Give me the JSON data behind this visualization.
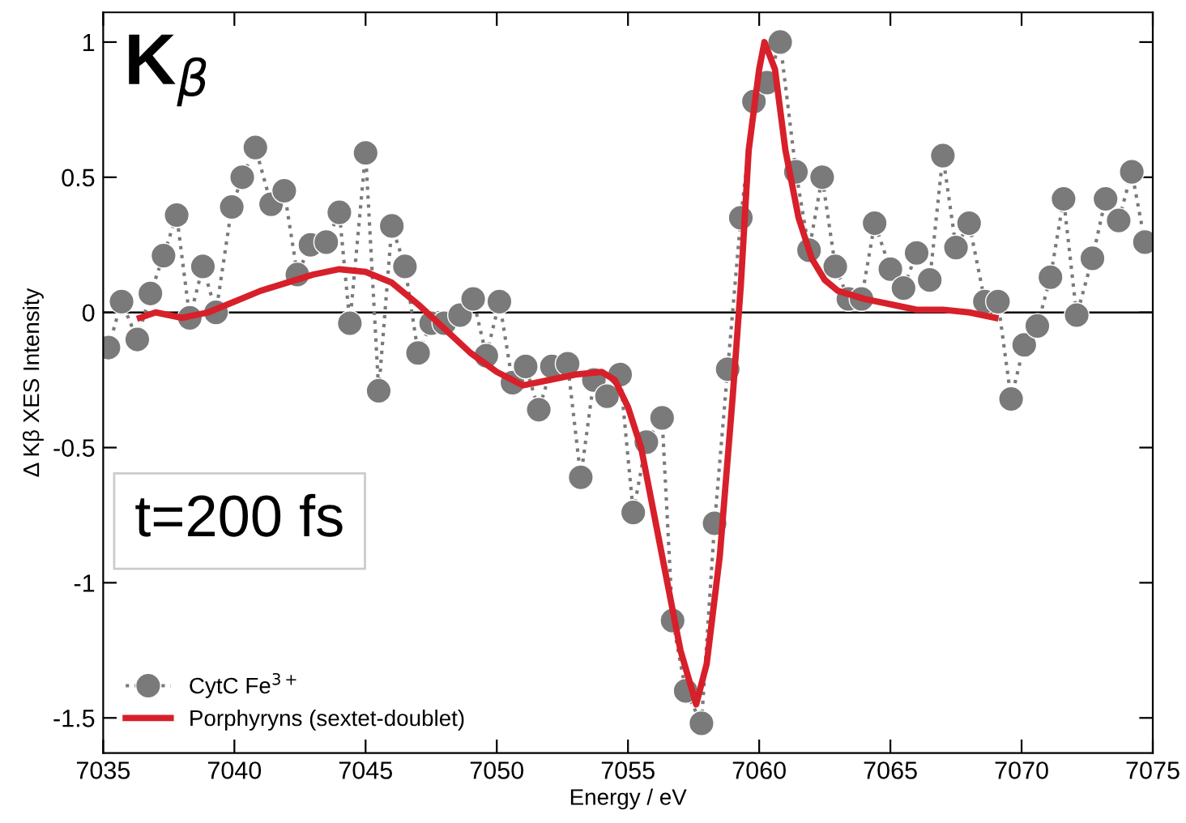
{
  "chart_data": {
    "type": "line",
    "xlabel": "Energy / eV",
    "ylabel": "Δ Kβ XES Intensity",
    "xlim": [
      7035,
      7075
    ],
    "xticks": [
      7035,
      7040,
      7045,
      7050,
      7055,
      7060,
      7065,
      7070,
      7075
    ],
    "ylim": [
      -1.63,
      1.11
    ],
    "yticks": [
      {
        "value": -1.5,
        "label": "-1.5"
      },
      {
        "value": -1,
        "label": "-1"
      },
      {
        "value": -0.5,
        "label": "-0.5"
      },
      0,
      0.5,
      1
    ],
    "grid": false,
    "legend": "bottom left",
    "annotations": [
      "K$_{β}$",
      "t=200 fs"
    ],
    "ref_lines": [
      {
        "axis": "y",
        "value": 0,
        "color": "#000000"
      }
    ],
    "series": [
      {
        "name": "CytC Fe$^{3+}$",
        "color": "#7a7a7a",
        "marker": "circle",
        "line_style": "dotted",
        "x": [
          7035.2,
          7035.7,
          7036.3,
          7036.8,
          7037.3,
          7037.8,
          7038.3,
          7038.8,
          7039.3,
          7039.9,
          7040.3,
          7040.8,
          7041.4,
          7041.9,
          7042.4,
          7042.9,
          7043.5,
          7044.0,
          7044.4,
          7045.0,
          7045.5,
          7046.0,
          7046.5,
          7047.0,
          7047.5,
          7048.0,
          7048.6,
          7049.1,
          7049.6,
          7050.1,
          7050.6,
          7051.1,
          7051.6,
          7052.1,
          7052.7,
          7053.2,
          7053.7,
          7054.2,
          7054.7,
          7055.2,
          7055.7,
          7056.3,
          7056.7,
          7057.2,
          7057.8,
          7058.3,
          7058.8,
          7059.3,
          7059.8,
          7060.3,
          7060.8,
          7061.4,
          7061.9,
          7062.4,
          7062.9,
          7063.4,
          7063.9,
          7064.4,
          7065.0,
          7065.5,
          7066.0,
          7066.5,
          7067.0,
          7067.5,
          7068.0,
          7068.6,
          7069.1,
          7069.6,
          7070.1,
          7070.6,
          7071.1,
          7071.6,
          7072.1,
          7072.7,
          7073.2,
          7073.7,
          7074.2,
          7074.7
        ],
        "values": [
          -0.13,
          0.04,
          -0.1,
          0.07,
          0.21,
          0.36,
          -0.02,
          0.17,
          0.0,
          0.39,
          0.5,
          0.61,
          0.4,
          0.45,
          0.14,
          0.25,
          0.26,
          0.37,
          -0.04,
          0.59,
          -0.29,
          0.32,
          0.17,
          -0.15,
          -0.04,
          -0.04,
          -0.01,
          0.05,
          -0.16,
          0.04,
          -0.26,
          -0.2,
          -0.36,
          -0.2,
          -0.19,
          -0.61,
          -0.25,
          -0.31,
          -0.23,
          -0.74,
          -0.48,
          -0.39,
          -1.14,
          -1.4,
          -1.52,
          -0.78,
          -0.21,
          0.35,
          0.78,
          0.85,
          1.0,
          0.52,
          0.23,
          0.5,
          0.17,
          0.05,
          0.05,
          0.33,
          0.16,
          0.09,
          0.22,
          0.12,
          0.58,
          0.24,
          0.33,
          0.04,
          0.04,
          -0.32,
          -0.12,
          -0.05,
          0.13,
          0.42,
          -0.01,
          0.2,
          0.42,
          0.34,
          0.52,
          0.26
        ]
      },
      {
        "name": "Porphyryns (sextet-doublet)",
        "color": "#d7202a",
        "marker": "none",
        "line_style": "solid",
        "x": [
          7036.4,
          7037,
          7038,
          7039,
          7040,
          7041,
          7042,
          7043,
          7044,
          7045,
          7046,
          7047,
          7048,
          7049,
          7050,
          7051,
          7052,
          7053,
          7054,
          7054.5,
          7055,
          7055.5,
          7056,
          7056.5,
          7057,
          7057.6,
          7058,
          7058.5,
          7059,
          7059.3,
          7059.6,
          7060,
          7060.2,
          7060.6,
          7061,
          7061.5,
          7062,
          7062.5,
          7063,
          7064,
          7065,
          7066,
          7067,
          7068,
          7069
        ],
        "values": [
          -0.02,
          0.0,
          -0.02,
          0.0,
          0.04,
          0.08,
          0.11,
          0.14,
          0.16,
          0.15,
          0.11,
          0.03,
          -0.06,
          -0.15,
          -0.22,
          -0.27,
          -0.25,
          -0.23,
          -0.22,
          -0.25,
          -0.35,
          -0.5,
          -0.75,
          -1.0,
          -1.25,
          -1.45,
          -1.3,
          -0.9,
          -0.3,
          0.1,
          0.6,
          0.9,
          1.0,
          0.9,
          0.6,
          0.35,
          0.2,
          0.12,
          0.08,
          0.05,
          0.03,
          0.01,
          0.01,
          0.0,
          -0.02
        ]
      }
    ]
  }
}
